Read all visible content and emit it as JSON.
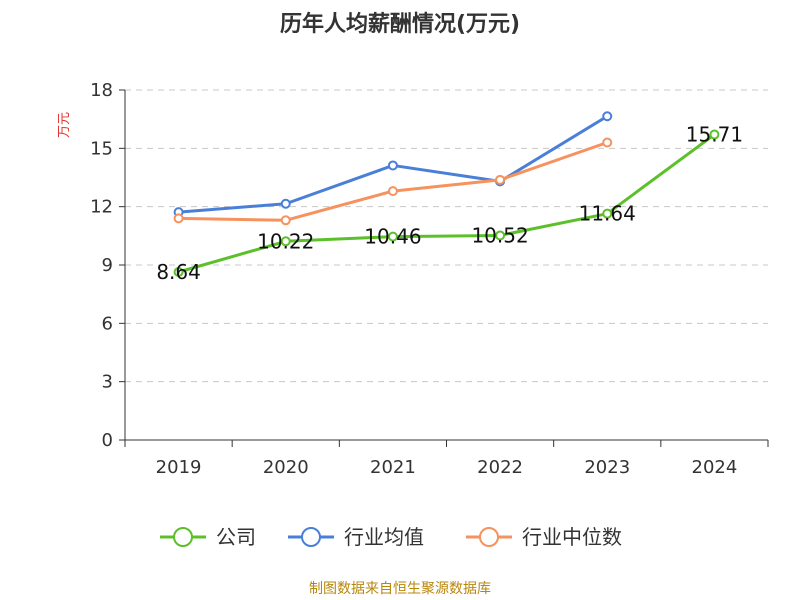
{
  "chart_title": "历年人均薪酬情况(万元)",
  "source_note": "制图数据来自恒生聚源数据库",
  "chart_data": {
    "type": "line",
    "title": "历年人均薪酬情况(万元)",
    "ylabel": "万元",
    "xlabel": "",
    "categories": [
      "2019",
      "2020",
      "2021",
      "2022",
      "2023",
      "2024"
    ],
    "ylim": [
      0,
      18
    ],
    "yticks": [
      0,
      3,
      6,
      9,
      12,
      15,
      18
    ],
    "grid": true,
    "legend_position": "bottom",
    "series": [
      {
        "name": "公司",
        "color": "#5cc02a",
        "values": [
          8.64,
          10.22,
          10.46,
          10.52,
          11.64,
          15.71
        ],
        "labels": [
          "8.64",
          "10.22",
          "10.46",
          "10.52",
          "11.64",
          "15.71"
        ],
        "show_labels": true
      },
      {
        "name": "行业均值",
        "color": "#4a7fd8",
        "values": [
          11.72,
          12.15,
          14.12,
          13.3,
          16.65,
          null
        ],
        "show_labels": false
      },
      {
        "name": "行业中位数",
        "color": "#f5925e",
        "values": [
          11.4,
          11.3,
          12.8,
          13.38,
          15.3,
          null
        ],
        "show_labels": false
      }
    ]
  }
}
